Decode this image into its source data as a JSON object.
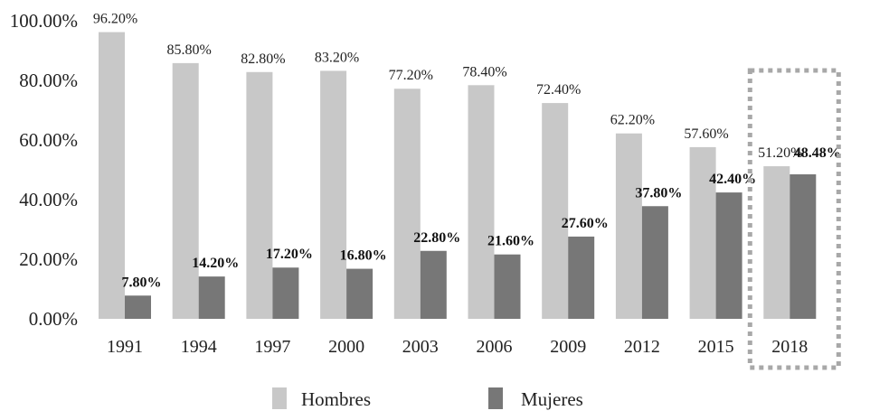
{
  "chart_data": {
    "type": "bar",
    "categories": [
      "1991",
      "1994",
      "1997",
      "2000",
      "2003",
      "2006",
      "2009",
      "2012",
      "2015",
      "2018"
    ],
    "series": [
      {
        "name": "Hombres",
        "color": "#c8c8c8",
        "values": [
          96.2,
          85.8,
          82.8,
          83.2,
          77.2,
          78.4,
          72.4,
          62.2,
          57.6,
          51.2
        ],
        "labels": [
          "96.20%",
          "85.80%",
          "82.80%",
          "83.20%",
          "77.20%",
          "78.40%",
          "72.40%",
          "62.20%",
          "57.60%",
          "51.20%"
        ]
      },
      {
        "name": "Mujeres",
        "color": "#777777",
        "values": [
          7.8,
          14.2,
          17.2,
          16.8,
          22.8,
          21.6,
          27.6,
          37.8,
          42.4,
          48.48
        ],
        "labels": [
          "7.80%",
          "14.20%",
          "17.20%",
          "16.80%",
          "22.80%",
          "21.60%",
          "27.60%",
          "37.80%",
          "42.40%",
          "48.48%"
        ]
      }
    ],
    "ylim": [
      0,
      100
    ],
    "yticks": [
      "0.00%",
      "20.00%",
      "40.00%",
      "60.00%",
      "80.00%",
      "100.00%"
    ],
    "legend": "bottom",
    "highlight": {
      "category": "2018",
      "style": "dotted-box"
    },
    "grid": false,
    "title": "",
    "xlabel": "",
    "ylabel": ""
  }
}
